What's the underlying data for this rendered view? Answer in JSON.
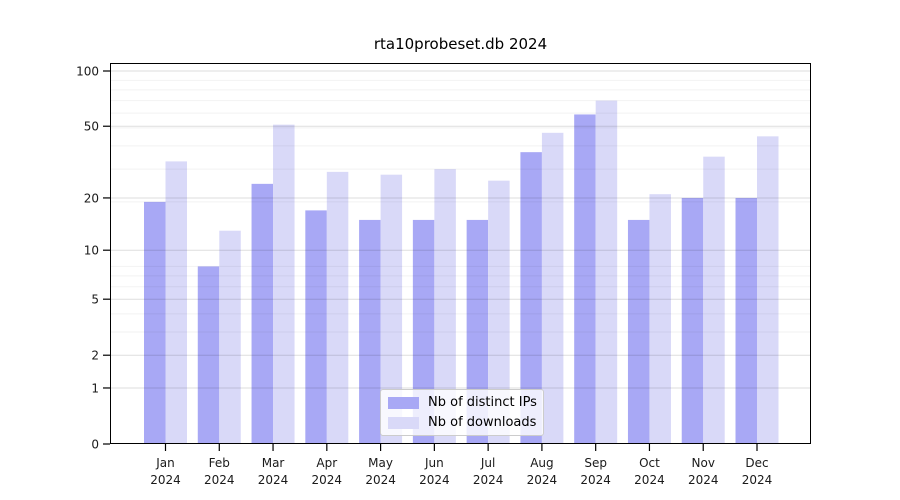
{
  "title": "rta10probeset.db 2024",
  "chart_data": {
    "type": "bar",
    "title": "rta10probeset.db 2024",
    "xlabel": "",
    "ylabel": "",
    "y_scale": "log10(value+1)",
    "y_ticks": [
      0,
      1,
      2,
      5,
      10,
      20,
      50,
      100
    ],
    "ylim": [
      0,
      110
    ],
    "grid": "on",
    "legend_position": "lower center",
    "year": "2024",
    "categories": [
      "Jan",
      "Feb",
      "Mar",
      "Apr",
      "May",
      "Jun",
      "Jul",
      "Aug",
      "Sep",
      "Oct",
      "Nov",
      "Dec"
    ],
    "series": [
      {
        "name": "Nb of distinct IPs",
        "color": "#a8a8f5",
        "values": [
          19,
          8,
          24,
          17,
          15,
          15,
          15,
          36,
          58,
          15,
          20,
          20
        ]
      },
      {
        "name": "Nb of downloads",
        "color": "#d9d9f8",
        "values": [
          32,
          13,
          51,
          28,
          27,
          29,
          25,
          46,
          69,
          21,
          34,
          44
        ]
      }
    ]
  },
  "colors": {
    "frame": "#000000",
    "tick_label": "#1a1a1a",
    "major_grid": "rgba(0,0,0,0.13)",
    "minor_grid": "rgba(0,0,0,0.05)"
  }
}
